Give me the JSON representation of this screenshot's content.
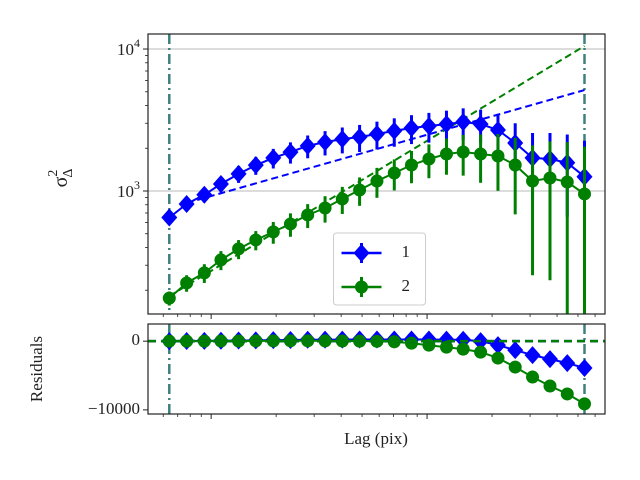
{
  "chart_data": [
    {
      "type": "line",
      "ylabel": {
        "base": "σ",
        "sup": "2",
        "sub": "Δ"
      },
      "xlog": true,
      "ylog": true,
      "grid": true,
      "legend": "lower center",
      "xlim": [
        5.1,
        667
      ],
      "xticks": [
        10,
        100
      ],
      "ylim": [
        136,
        12760
      ],
      "yticks": [
        {
          "value": 1000,
          "label": "10",
          "exponent": "3"
        },
        {
          "value": 10000,
          "label": "10",
          "exponent": "4"
        }
      ],
      "vlines": [
        6.4,
        536
      ],
      "x": [
        6.4,
        7.7,
        9.3,
        11.1,
        13.4,
        16.1,
        19.4,
        23.3,
        28,
        33.7,
        40.5,
        48.7,
        58.6,
        70.5,
        84.7,
        102,
        123,
        147,
        177,
        213,
        256,
        308,
        371,
        446,
        536
      ],
      "series": [
        {
          "name": "1",
          "color": "#0000ff",
          "marker": "diamond",
          "values": [
            650,
            810,
            940,
            1120,
            1320,
            1520,
            1710,
            1880,
            2080,
            2210,
            2320,
            2400,
            2520,
            2650,
            2780,
            2870,
            2960,
            3060,
            2960,
            2690,
            2180,
            1710,
            1680,
            1580,
            1260
          ],
          "errors": [
            60,
            90,
            110,
            140,
            180,
            220,
            270,
            320,
            380,
            430,
            480,
            520,
            560,
            600,
            640,
            680,
            720,
            760,
            780,
            800,
            820,
            850,
            880,
            920,
            1000
          ],
          "fit_x": [
            7.7,
            536
          ],
          "fit": [
            823,
            5140
          ]
        },
        {
          "name": "2",
          "color": "#008000",
          "marker": "circle",
          "values": [
            176,
            225,
            265,
            327,
            391,
            452,
            515,
            586,
            678,
            759,
            879,
            1016,
            1175,
            1339,
            1524,
            1680,
            1822,
            1883,
            1822,
            1763,
            1524,
            1175,
            1235,
            1157,
            953
          ],
          "errors": [
            20,
            30,
            40,
            50,
            60,
            70,
            90,
            110,
            130,
            160,
            190,
            230,
            280,
            330,
            390,
            450,
            520,
            600,
            680,
            760,
            840,
            920,
            1000,
            1050,
            1100
          ],
          "fit_x": [
            6.4,
            536
          ],
          "fit": [
            182,
            10500
          ]
        }
      ]
    },
    {
      "type": "line",
      "ylabel": "Residuals",
      "xlabel": "Lag (pix)",
      "xlog": true,
      "xlim": [
        5.1,
        667
      ],
      "xticks": [
        10,
        100
      ],
      "ylim": [
        -10600,
        2500
      ],
      "yticks": [
        0,
        {
          "value": -10000,
          "label": "−10000"
        }
      ],
      "hline": 0,
      "vlines": [
        6.4,
        536
      ],
      "x": [
        6.4,
        7.7,
        9.3,
        11.1,
        13.4,
        16.1,
        19.4,
        23.3,
        28,
        33.7,
        40.5,
        48.7,
        58.6,
        70.5,
        84.7,
        102,
        123,
        147,
        177,
        213,
        256,
        308,
        371,
        446,
        536
      ],
      "series": [
        {
          "name": "1",
          "color": "#0000ff",
          "marker": "diamond",
          "values": [
            0,
            20,
            40,
            60,
            90,
            120,
            150,
            170,
            200,
            220,
            230,
            240,
            250,
            250,
            250,
            240,
            220,
            200,
            0,
            -580,
            -1300,
            -2030,
            -2610,
            -3190,
            -3910
          ]
        },
        {
          "name": "2",
          "color": "#008000",
          "marker": "circle",
          "values": [
            0,
            0,
            10,
            20,
            30,
            40,
            40,
            50,
            50,
            40,
            30,
            10,
            -20,
            -80,
            -290,
            -580,
            -870,
            -1160,
            -1590,
            -2460,
            -3770,
            -5220,
            -6520,
            -7680,
            -9130
          ]
        }
      ]
    }
  ]
}
